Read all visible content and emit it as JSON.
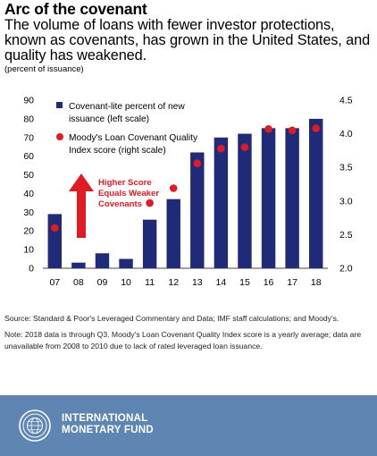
{
  "header": {
    "title": "Arc of the covenant",
    "subtitle": "The volume of loans with fewer investor protections, known as covenants, has grown in the United States, and quality has weakened.",
    "unit": "(percent of issuance)"
  },
  "chart_data": {
    "type": "bar",
    "categories": [
      "07",
      "08",
      "09",
      "10",
      "11",
      "12",
      "13",
      "14",
      "15",
      "16",
      "17",
      "18"
    ],
    "series": [
      {
        "name": "Covenant-lite percent of new issuance (left scale)",
        "type": "bar",
        "axis": "left",
        "color": "#1f2a78",
        "values": [
          29,
          3,
          8,
          5,
          26,
          37,
          62,
          70,
          72,
          75,
          75,
          80
        ]
      },
      {
        "name": "Moody's Loan Covenant Quality Index score (right scale)",
        "type": "scatter",
        "axis": "right",
        "color": "#e01b24",
        "values": [
          2.6,
          null,
          null,
          null,
          2.97,
          3.19,
          3.56,
          3.78,
          3.8,
          4.07,
          4.05,
          4.08
        ]
      }
    ],
    "y_left": {
      "lim": [
        0,
        90
      ],
      "ticks": [
        "0",
        "10",
        "20",
        "30",
        "40",
        "50",
        "60",
        "70",
        "80",
        "90"
      ]
    },
    "y_right": {
      "lim": [
        2.0,
        4.5
      ],
      "ticks": [
        "2.0",
        "2.5",
        "3.0",
        "3.5",
        "4.0",
        "4.5"
      ]
    },
    "legend": {
      "bar_lines": [
        "Covenant-lite percent of new",
        "issuance (left scale)"
      ],
      "dot_lines": [
        "Moody's Loan Covenant Quality",
        "Index score (right scale)"
      ]
    },
    "annotation": {
      "lines": [
        "Higher Score",
        "Equals Weaker",
        "Covenants"
      ],
      "color": "#e01b24"
    },
    "grid": false
  },
  "notes": {
    "source": "Source: Standard & Poor's Leveraged Commentary and Data; IMF staff calculations; and Moody's.",
    "note": "Note: 2018 data is through Q3. Moody's Loan Covenant Quality Index score is a yearly average; data are unavailable from 2008 to 2010 due to lack of rated leveraged loan issuance."
  },
  "footer": {
    "name_line1": "INTERNATIONAL",
    "name_line2": "MONETARY FUND",
    "logo_icon": "imf-seal-icon",
    "background": "#5f86b2"
  }
}
